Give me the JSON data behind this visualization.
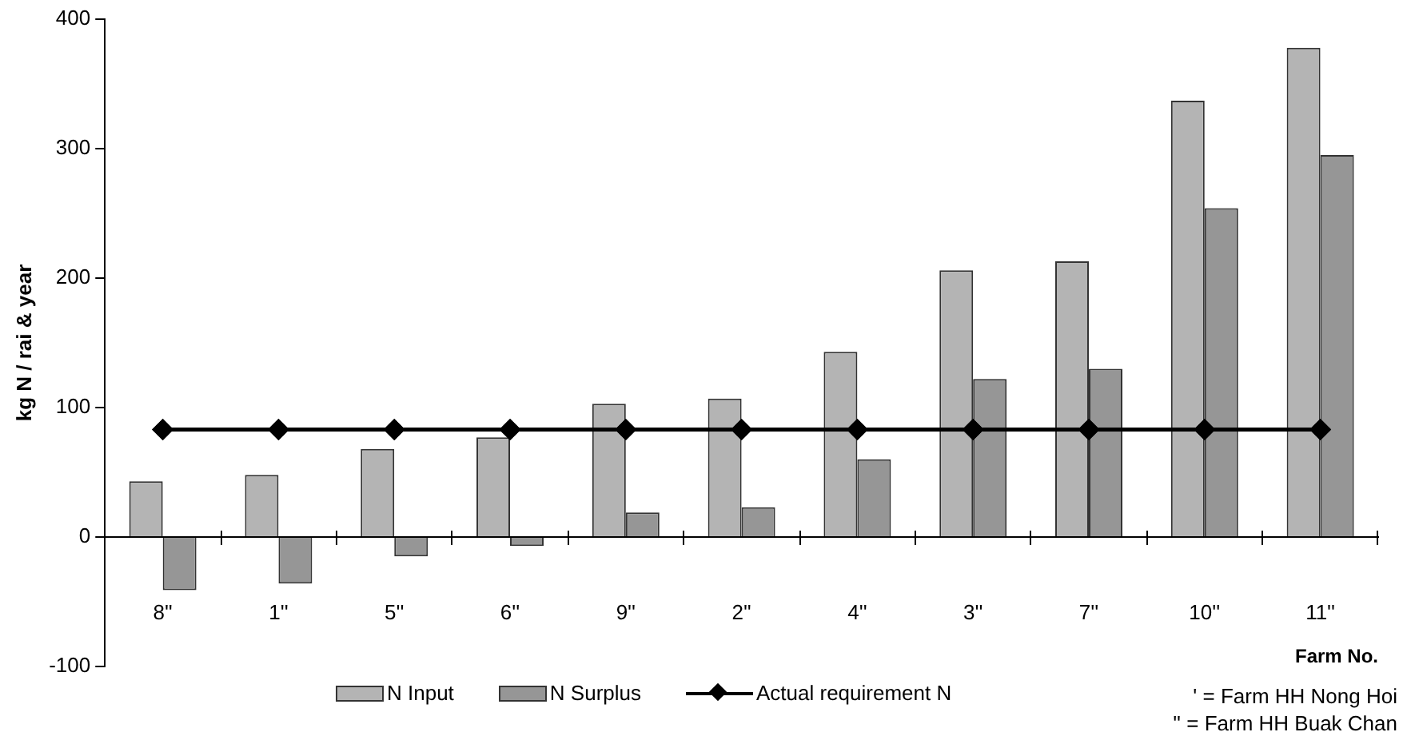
{
  "chart_data": {
    "type": "bar",
    "ylabel": "kg N / rai & year",
    "xlabel": "Farm No.",
    "categories": [
      "8''",
      "1''",
      "5''",
      "6''",
      "9''",
      "2''",
      "4''",
      "3''",
      "7''",
      "10''",
      "11''"
    ],
    "series": [
      {
        "name": "N Input",
        "color": "#b4b4b4",
        "values": [
          43,
          48,
          68,
          77,
          103,
          107,
          143,
          206,
          213,
          337,
          378
        ]
      },
      {
        "name": "N Surplus",
        "color": "#969696",
        "values": [
          -41,
          -36,
          -15,
          -7,
          19,
          23,
          60,
          122,
          130,
          254,
          295
        ]
      },
      {
        "name": "Actual requirement N",
        "type": "line",
        "color": "#000000",
        "marker": "diamond",
        "values": [
          83,
          83,
          83,
          83,
          83,
          83,
          83,
          83,
          83,
          83,
          83
        ]
      }
    ],
    "ylim": [
      -100,
      400
    ],
    "yticks": [
      -100,
      0,
      100,
      200,
      300,
      400
    ],
    "grid": false,
    "legend": "bottom",
    "annotations": [
      "' = Farm HH Nong Hoi",
      "'' = Farm HH Buak Chan"
    ]
  }
}
